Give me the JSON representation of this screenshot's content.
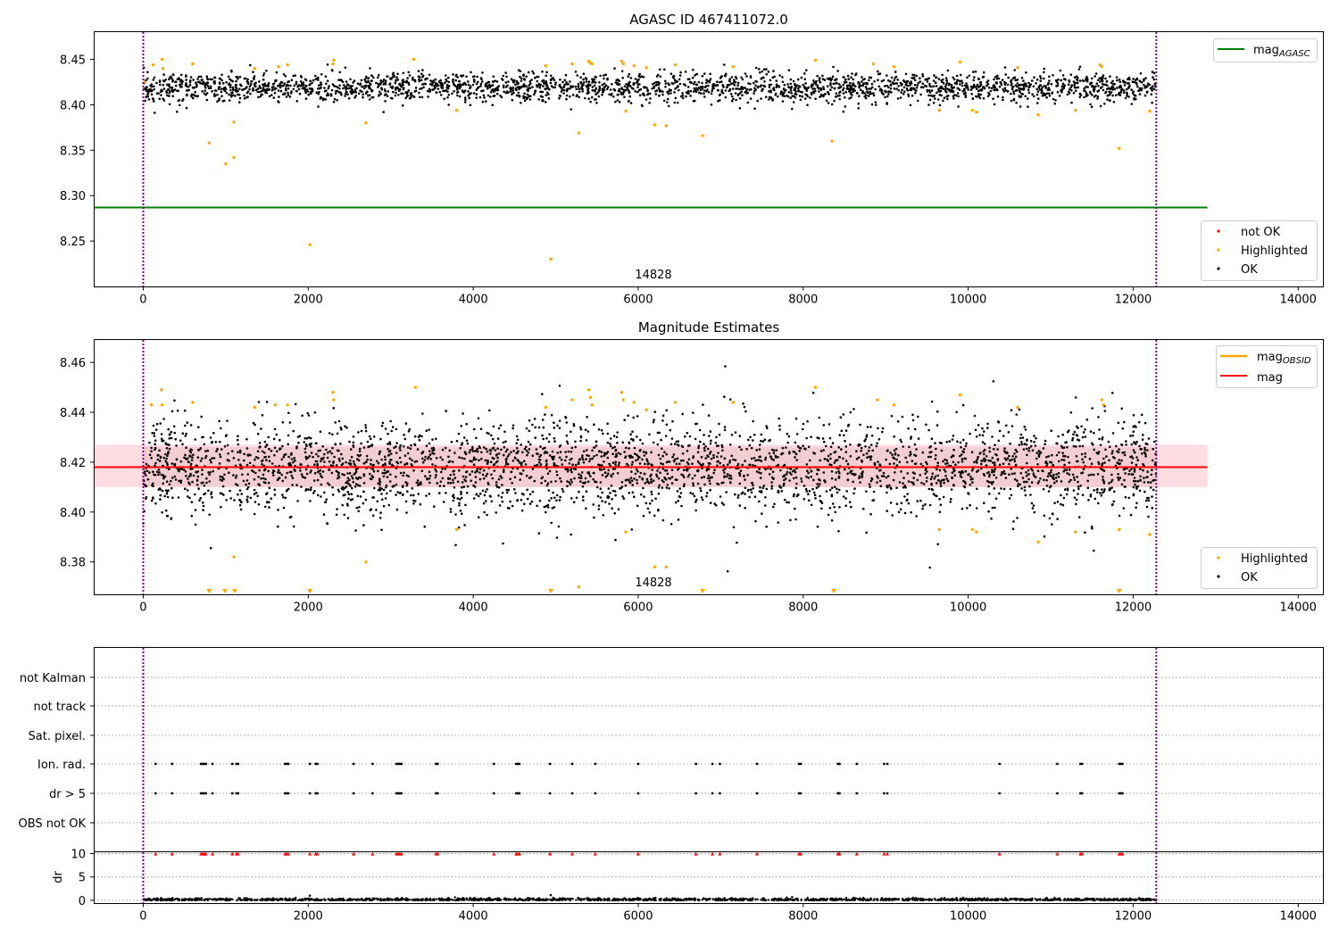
{
  "figure_title": "AGASC ID 467411072.0",
  "colors": {
    "ok": "#000000",
    "highlighted": "#ffa500",
    "not_ok": "#ff0000",
    "mag_agasc": "#008000",
    "mag": "#ff0000",
    "mag_obsid": "#ffa500",
    "vline": "#800080",
    "band": "#ffc0cb"
  },
  "chart_data": [
    {
      "type": "scatter",
      "title": "AGASC ID 467411072.0",
      "xlim": [
        -600,
        14300
      ],
      "ylim": [
        8.2,
        8.48
      ],
      "x_ticks": [
        0,
        2000,
        4000,
        6000,
        8000,
        10000,
        12000,
        14000
      ],
      "x_tick_labels": [
        "0",
        "2000",
        "4000",
        "6000",
        "8000",
        "10000",
        "12000",
        "14000"
      ],
      "y_ticks": [
        8.25,
        8.3,
        8.35,
        8.4,
        8.45
      ],
      "y_tick_labels": [
        "8.25",
        "8.30",
        "8.35",
        "8.40",
        "8.45"
      ],
      "obsid_label": "14828",
      "obsid_bounds": [
        0,
        12280
      ],
      "mag_agasc": 8.287,
      "mag_agasc_x_range": [
        -600,
        12900
      ],
      "ok_band": {
        "center": 8.419,
        "spread": 0.008,
        "x_range": [
          0,
          12280
        ]
      },
      "highlighted_points": [
        [
          20,
          8.425
        ],
        [
          120,
          8.444
        ],
        [
          230,
          8.45
        ],
        [
          240,
          8.44
        ],
        [
          600,
          8.445
        ],
        [
          800,
          8.358
        ],
        [
          1000,
          8.335
        ],
        [
          1100,
          8.381
        ],
        [
          1100,
          8.342
        ],
        [
          1350,
          8.44
        ],
        [
          1640,
          8.442
        ],
        [
          1750,
          8.444
        ],
        [
          2020,
          8.246
        ],
        [
          2300,
          8.445
        ],
        [
          2310,
          8.449
        ],
        [
          2700,
          8.38
        ],
        [
          3280,
          8.45
        ],
        [
          3800,
          8.394
        ],
        [
          4880,
          8.443
        ],
        [
          4940,
          8.23
        ],
        [
          5200,
          8.445
        ],
        [
          5280,
          8.369
        ],
        [
          5400,
          8.448
        ],
        [
          5420,
          8.446
        ],
        [
          5440,
          8.445
        ],
        [
          5800,
          8.448
        ],
        [
          5820,
          8.445
        ],
        [
          5850,
          8.393
        ],
        [
          5950,
          8.443
        ],
        [
          6100,
          8.441
        ],
        [
          6200,
          8.378
        ],
        [
          6340,
          8.377
        ],
        [
          6450,
          8.444
        ],
        [
          6780,
          8.366
        ],
        [
          7150,
          8.442
        ],
        [
          8150,
          8.449
        ],
        [
          8350,
          8.36
        ],
        [
          8850,
          8.445
        ],
        [
          9100,
          8.442
        ],
        [
          9650,
          8.394
        ],
        [
          9900,
          8.447
        ],
        [
          10050,
          8.394
        ],
        [
          10100,
          8.392
        ],
        [
          10600,
          8.441
        ],
        [
          10850,
          8.389
        ],
        [
          11300,
          8.394
        ],
        [
          11600,
          8.444
        ],
        [
          11620,
          8.442
        ],
        [
          11830,
          8.352
        ],
        [
          12200,
          8.393
        ]
      ],
      "legend_lines": [
        {
          "label": "mag",
          "subscript": "AGASC"
        }
      ],
      "legend_points": [
        {
          "label": "not OK",
          "color": "#ff0000"
        },
        {
          "label": "Highlighted",
          "color": "#ffa500"
        },
        {
          "label": "OK",
          "color": "#000000"
        }
      ],
      "legend_placement": [
        "upper right",
        "lower right"
      ],
      "grid": false
    },
    {
      "type": "scatter",
      "title": "Magnitude Estimates",
      "xlim": [
        -600,
        14300
      ],
      "ylim": [
        8.367,
        8.469
      ],
      "x_ticks": [
        0,
        2000,
        4000,
        6000,
        8000,
        10000,
        12000,
        14000
      ],
      "x_tick_labels": [
        "0",
        "2000",
        "4000",
        "6000",
        "8000",
        "10000",
        "12000",
        "14000"
      ],
      "y_ticks": [
        8.38,
        8.4,
        8.42,
        8.44,
        8.46
      ],
      "y_tick_labels": [
        "8.38",
        "8.40",
        "8.42",
        "8.44",
        "8.46"
      ],
      "obsid_label": "14828",
      "obsid_bounds": [
        0,
        12280
      ],
      "mag": 8.418,
      "mag_x_range": [
        -600,
        12900
      ],
      "mag_band": [
        8.41,
        8.427
      ],
      "mag_obsid": 8.418,
      "ok_band": {
        "center": 8.418,
        "spread": 0.009,
        "x_range": [
          0,
          12280
        ]
      },
      "highlighted_points": [
        [
          100,
          8.443
        ],
        [
          220,
          8.449
        ],
        [
          230,
          8.443
        ],
        [
          600,
          8.444
        ],
        [
          1100,
          8.382
        ],
        [
          1350,
          8.442
        ],
        [
          1600,
          8.443
        ],
        [
          1750,
          8.443
        ],
        [
          2300,
          8.448
        ],
        [
          2310,
          8.445
        ],
        [
          2700,
          8.38
        ],
        [
          3300,
          8.45
        ],
        [
          3800,
          8.393
        ],
        [
          4880,
          8.442
        ],
        [
          5200,
          8.445
        ],
        [
          5280,
          8.37
        ],
        [
          5400,
          8.449
        ],
        [
          5420,
          8.446
        ],
        [
          5440,
          8.443
        ],
        [
          5800,
          8.448
        ],
        [
          5820,
          8.445
        ],
        [
          5850,
          8.392
        ],
        [
          5950,
          8.444
        ],
        [
          6100,
          8.441
        ],
        [
          6200,
          8.378
        ],
        [
          6340,
          8.378
        ],
        [
          6450,
          8.444
        ],
        [
          7150,
          8.444
        ],
        [
          8150,
          8.45
        ],
        [
          8900,
          8.445
        ],
        [
          9100,
          8.443
        ],
        [
          9650,
          8.393
        ],
        [
          9900,
          8.447
        ],
        [
          10050,
          8.393
        ],
        [
          10100,
          8.392
        ],
        [
          10600,
          8.442
        ],
        [
          10850,
          8.388
        ],
        [
          11300,
          8.392
        ],
        [
          11620,
          8.445
        ],
        [
          11640,
          8.443
        ],
        [
          11830,
          8.393
        ],
        [
          12200,
          8.391
        ]
      ],
      "clipped_low_x": [
        800,
        990,
        1110,
        2020,
        4940,
        6780,
        8370,
        11830
      ],
      "legend_lines": [
        {
          "label": "mag",
          "subscript": "OBSID",
          "color": "#ffa500"
        },
        {
          "label": "mag",
          "subscript": "",
          "color": "#ff0000"
        }
      ],
      "legend_points": [
        {
          "label": "Highlighted",
          "color": "#ffa500"
        },
        {
          "label": "OK",
          "color": "#000000"
        }
      ],
      "legend_placement": [
        "upper right",
        "lower right"
      ],
      "grid": false
    },
    {
      "type": "scatter",
      "title": "",
      "xlim": [
        -600,
        14300
      ],
      "categories": [
        "not Kalman",
        "not track",
        "Sat. pixel.",
        "Ion. rad.",
        "dr > 5",
        "OBS not OK"
      ],
      "flag_events_x": [
        150,
        350,
        700,
        720,
        740,
        760,
        840,
        1080,
        1130,
        1150,
        1720,
        1740,
        1760,
        2020,
        2090,
        2110,
        2550,
        2780,
        3070,
        3090,
        3110,
        3130,
        3550,
        3570,
        4250,
        4520,
        4540,
        4560,
        4930,
        5200,
        5480,
        6000,
        6700,
        6900,
        6990,
        7440,
        7950,
        7970,
        8420,
        8440,
        8650,
        8980,
        9020,
        10380,
        11080,
        11360,
        11380,
        11830,
        11850,
        11870
      ],
      "grid": "horizontal dotted",
      "obsid_bounds": [
        0,
        12280
      ]
    },
    {
      "type": "scatter",
      "title": "",
      "xlim": [
        -600,
        14300
      ],
      "ylim": [
        -0.6,
        10.3
      ],
      "ylabel": "dr",
      "x_ticks": [
        0,
        2000,
        4000,
        6000,
        8000,
        10000,
        12000,
        14000
      ],
      "x_tick_labels": [
        "0",
        "2000",
        "4000",
        "6000",
        "8000",
        "10000",
        "12000",
        "14000"
      ],
      "y_ticks": [
        0,
        5,
        10
      ],
      "y_tick_labels": [
        "0",
        "5",
        "10"
      ],
      "dr_baseline": {
        "center": 0.15,
        "spread": 0.15,
        "x_range": [
          0,
          12280
        ]
      },
      "dr_outliers": [
        [
          2020,
          1.0
        ],
        [
          4940,
          1.1
        ],
        [
          3700,
          0.5
        ]
      ],
      "dr_clipped_x": [
        150,
        350,
        700,
        720,
        740,
        760,
        840,
        1080,
        1130,
        1150,
        1720,
        1740,
        1760,
        2020,
        2090,
        2110,
        2550,
        2780,
        3070,
        3090,
        3110,
        3130,
        3550,
        3570,
        4250,
        4520,
        4540,
        4560,
        4930,
        5200,
        5480,
        6000,
        6700,
        6900,
        6990,
        7440,
        7950,
        7970,
        8420,
        8440,
        8650,
        8980,
        9020,
        10380,
        11080,
        11360,
        11380,
        11830,
        11850,
        11870
      ],
      "grid": "horizontal dotted",
      "obsid_bounds": [
        0,
        12280
      ]
    }
  ]
}
